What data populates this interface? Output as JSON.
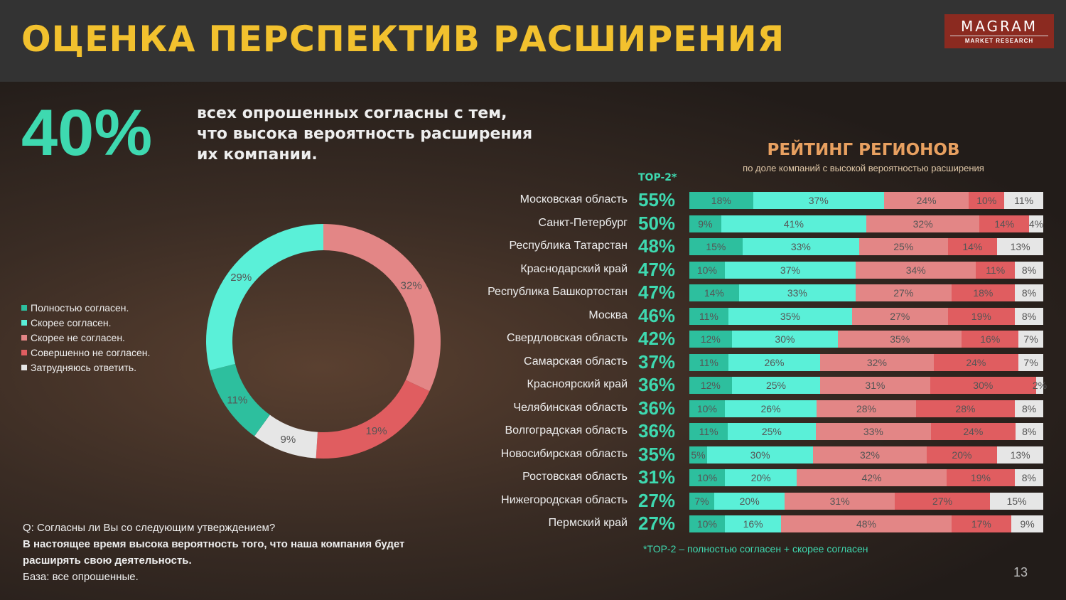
{
  "header": {
    "title": "ОЦЕНКА ПЕРСПЕКТИВ РАСШИРЕНИЯ",
    "logo_main": "MAGRAM",
    "logo_sub": "MARKET RESEARCH"
  },
  "headline": {
    "value": "40%",
    "lines": [
      "всех опрошенных согласны с тем,",
      "что высока вероятность расширения",
      "их компании."
    ]
  },
  "colors": {
    "fully_agree": "#2dbf9e",
    "agree": "#5af0d8",
    "disagree": "#e38686",
    "fully_disagree": "#e05d60",
    "dont_know": "#e6e6e6",
    "accent": "#3ed9b0",
    "title": "#f2c12e"
  },
  "chart_data": [
    {
      "type": "pie",
      "subtype": "donut",
      "title": "",
      "legend_position": "left",
      "categories": [
        "Полностью согласен.",
        "Скорее согласен.",
        "Скорее не согласен.",
        "Совершенно не согласен.",
        "Затрудняюсь ответить."
      ],
      "values": [
        11,
        29,
        32,
        19,
        9
      ],
      "labels": [
        "11%",
        "29%",
        "32%",
        "19%",
        "9%"
      ]
    },
    {
      "type": "bar",
      "subtype": "stacked-horizontal-100",
      "title": "РЕЙТИНГ РЕГИОНОВ",
      "subtitle": "по доле компаний с высокой вероятностью расширения",
      "top2_header": "TOP-2*",
      "series_names": [
        "Полностью согласен.",
        "Скорее согласен.",
        "Скорее не согласен.",
        "Совершенно не согласен.",
        "Затрудняюсь ответить."
      ],
      "rows": [
        {
          "region": "Московская область",
          "top2": "55%",
          "values": [
            18,
            37,
            24,
            10,
            11
          ]
        },
        {
          "region": "Санкт-Петербург",
          "top2": "50%",
          "values": [
            9,
            41,
            32,
            14,
            4
          ]
        },
        {
          "region": "Республика Татарстан",
          "top2": "48%",
          "values": [
            15,
            33,
            25,
            14,
            13
          ]
        },
        {
          "region": "Краснодарский край",
          "top2": "47%",
          "values": [
            10,
            37,
            34,
            11,
            8
          ]
        },
        {
          "region": "Республика Башкортостан",
          "top2": "47%",
          "values": [
            14,
            33,
            27,
            18,
            8
          ]
        },
        {
          "region": "Москва",
          "top2": "46%",
          "values": [
            11,
            35,
            27,
            19,
            8
          ]
        },
        {
          "region": "Свердловская область",
          "top2": "42%",
          "values": [
            12,
            30,
            35,
            16,
            7
          ]
        },
        {
          "region": "Самарская область",
          "top2": "37%",
          "values": [
            11,
            26,
            32,
            24,
            7
          ]
        },
        {
          "region": "Красноярский край",
          "top2": "36%",
          "values": [
            12,
            25,
            31,
            30,
            2
          ]
        },
        {
          "region": "Челябинская область",
          "top2": "36%",
          "values": [
            10,
            26,
            28,
            28,
            8
          ]
        },
        {
          "region": "Волгоградская область",
          "top2": "36%",
          "values": [
            11,
            25,
            33,
            24,
            8
          ]
        },
        {
          "region": "Новосибирская область",
          "top2": "35%",
          "values": [
            5,
            30,
            32,
            20,
            13
          ]
        },
        {
          "region": "Ростовская область",
          "top2": "31%",
          "values": [
            10,
            20,
            42,
            19,
            8
          ]
        },
        {
          "region": "Нижегородская область",
          "top2": "27%",
          "values": [
            7,
            20,
            31,
            27,
            15
          ]
        },
        {
          "region": "Пермский край",
          "top2": "27%",
          "values": [
            10,
            16,
            48,
            17,
            9
          ]
        }
      ],
      "footnote": "*TOP-2 – полностью согласен + скорее согласен"
    }
  ],
  "question": {
    "q": "Q: Согласны ли Вы со следующим утверждением?",
    "statement": "В настоящее время высока вероятность того, что наша компания будет расширять свою деятельность.",
    "base": "База: все опрошенные."
  },
  "page_number": "13"
}
